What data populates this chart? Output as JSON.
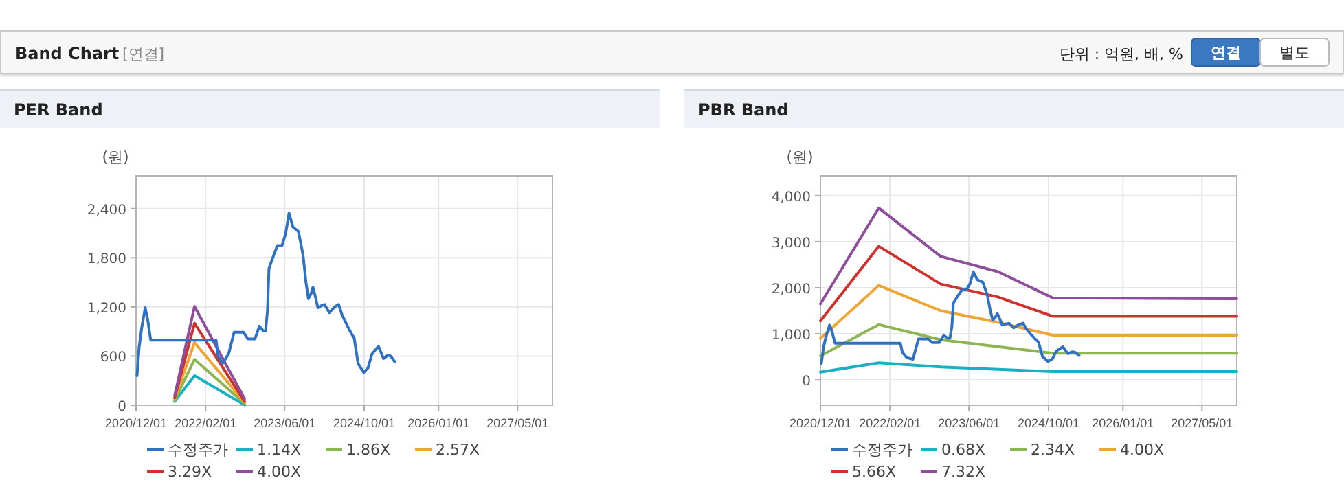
{
  "chart_data": [
    {
      "type": "other",
      "title": "Band Chart",
      "annotations": [
        "[연결]",
        "단위 : 억원, 배, %",
        "연결",
        "별도"
      ]
    },
    {
      "type": "line",
      "title": "PER Band",
      "ylabel": "(원)",
      "xlim": [
        "2020-12-01",
        "2027-12-01"
      ],
      "xticks": [
        {
          "value": "2020-12-01",
          "label": "2020/12/01"
        },
        {
          "value": "2022-02-01",
          "label": "2022/02/01"
        },
        {
          "value": "2023-06-01",
          "label": "2023/06/01"
        },
        {
          "value": "2024-10-01",
          "label": "2024/10/01"
        },
        {
          "value": "2026-01-01",
          "label": "2026/01/01"
        },
        {
          "value": "2027-05-01",
          "label": "2027/05/01"
        }
      ],
      "ylim": [
        0,
        2800
      ],
      "yticks": [
        {
          "value": 0,
          "label": "0"
        },
        {
          "value": 600,
          "label": "600"
        },
        {
          "value": 1200,
          "label": "1,200"
        },
        {
          "value": 1800,
          "label": "1,800"
        },
        {
          "value": 2400,
          "label": "2,400"
        }
      ],
      "grid": true,
      "legend": "bottom",
      "series": [
        {
          "name": "수정주가",
          "color": "#2f72c4",
          "x": [
            "2020-12-07",
            "2020-12-20",
            "2021-01-04",
            "2021-01-26",
            "2021-02-10",
            "2021-03-01",
            "2022-04-06",
            "2022-04-18",
            "2022-05-16",
            "2022-06-22",
            "2022-07-26",
            "2022-09-22",
            "2022-10-18",
            "2022-12-01",
            "2022-12-28",
            "2023-01-22",
            "2023-02-04",
            "2023-02-16",
            "2023-02-25",
            "2023-03-22",
            "2023-04-18",
            "2023-05-16",
            "2023-06-07",
            "2023-06-28",
            "2023-07-22",
            "2023-08-25",
            "2023-09-22",
            "2023-10-10",
            "2023-10-25",
            "2023-11-10",
            "2023-11-22",
            "2023-12-10",
            "2023-12-22",
            "2024-01-13",
            "2024-02-01",
            "2024-03-01",
            "2024-04-06",
            "2024-04-28",
            "2024-05-18",
            "2024-06-15",
            "2024-07-13",
            "2024-08-01",
            "2024-08-25",
            "2024-09-28",
            "2024-10-25",
            "2024-11-18",
            "2024-12-28",
            "2025-01-28",
            "2025-02-25",
            "2025-03-13",
            "2025-04-07"
          ],
          "values": [
            360,
            710,
            935,
            1190,
            1050,
            795,
            795,
            600,
            510,
            625,
            890,
            890,
            810,
            810,
            965,
            905,
            905,
            1160,
            1670,
            1810,
            1950,
            1950,
            2090,
            2345,
            2175,
            2120,
            1835,
            1500,
            1300,
            1360,
            1440,
            1300,
            1190,
            1215,
            1230,
            1130,
            1205,
            1230,
            1105,
            990,
            880,
            820,
            510,
            400,
            455,
            625,
            720,
            570,
            610,
            600,
            530
          ]
        },
        {
          "name": "1.14X",
          "color": "#17b1c1",
          "x": [
            "2021-07-26",
            "2021-11-25",
            "2022-09-28"
          ],
          "values": [
            45,
            360,
            5
          ]
        },
        {
          "name": "1.86X",
          "color": "#8db652",
          "x": [
            "2021-07-26",
            "2021-11-25",
            "2022-09-28"
          ],
          "values": [
            60,
            560,
            20
          ]
        },
        {
          "name": "2.57X",
          "color": "#f0a431",
          "x": [
            "2021-07-26",
            "2021-11-25",
            "2022-09-28"
          ],
          "values": [
            80,
            765,
            35
          ]
        },
        {
          "name": "3.29X",
          "color": "#d0312d",
          "x": [
            "2021-07-26",
            "2021-11-25",
            "2022-09-28"
          ],
          "values": [
            90,
            1000,
            45
          ]
        },
        {
          "name": "4.00X",
          "color": "#8e4e9b",
          "x": [
            "2021-07-26",
            "2021-11-25",
            "2022-09-28"
          ],
          "values": [
            118,
            1205,
            80
          ]
        }
      ]
    },
    {
      "type": "line",
      "title": "PBR Band",
      "ylabel": "(원)",
      "xlim": [
        "2020-12-01",
        "2027-12-01"
      ],
      "xticks": [
        {
          "value": "2020-12-01",
          "label": "2020/12/01"
        },
        {
          "value": "2022-02-01",
          "label": "2022/02/01"
        },
        {
          "value": "2023-06-01",
          "label": "2023/06/01"
        },
        {
          "value": "2024-10-01",
          "label": "2024/10/01"
        },
        {
          "value": "2026-01-01",
          "label": "2026/01/01"
        },
        {
          "value": "2027-05-01",
          "label": "2027/05/01"
        }
      ],
      "ylim": [
        -550,
        4430
      ],
      "yticks": [
        {
          "value": 0,
          "label": "0"
        },
        {
          "value": 1000,
          "label": "1,000"
        },
        {
          "value": 2000,
          "label": "2,000"
        },
        {
          "value": 3000,
          "label": "3,000"
        },
        {
          "value": 4000,
          "label": "4,000"
        }
      ],
      "grid": true,
      "legend": "bottom",
      "series": [
        {
          "name": "수정주가",
          "color": "#2f72c4",
          "x": [
            "2020-12-07",
            "2020-12-20",
            "2021-01-04",
            "2021-01-26",
            "2021-02-10",
            "2021-03-01",
            "2022-04-06",
            "2022-04-18",
            "2022-05-16",
            "2022-06-22",
            "2022-07-26",
            "2022-09-22",
            "2022-10-18",
            "2022-12-01",
            "2022-12-28",
            "2023-01-22",
            "2023-02-04",
            "2023-02-16",
            "2023-02-25",
            "2023-03-22",
            "2023-04-18",
            "2023-05-16",
            "2023-06-07",
            "2023-06-28",
            "2023-07-22",
            "2023-08-25",
            "2023-09-22",
            "2023-10-10",
            "2023-10-25",
            "2023-11-10",
            "2023-11-22",
            "2023-12-10",
            "2023-12-22",
            "2024-01-13",
            "2024-02-01",
            "2024-03-01",
            "2024-04-06",
            "2024-04-28",
            "2024-05-18",
            "2024-06-15",
            "2024-07-13",
            "2024-08-01",
            "2024-08-25",
            "2024-09-28",
            "2024-10-25",
            "2024-11-18",
            "2024-12-28",
            "2025-01-28",
            "2025-02-25",
            "2025-03-13",
            "2025-04-07"
          ],
          "values": [
            360,
            710,
            935,
            1190,
            1050,
            795,
            795,
            600,
            480,
            450,
            890,
            890,
            810,
            810,
            965,
            905,
            905,
            1160,
            1670,
            1810,
            1950,
            1950,
            2090,
            2345,
            2175,
            2120,
            1835,
            1500,
            1300,
            1360,
            1440,
            1300,
            1190,
            1215,
            1230,
            1130,
            1205,
            1230,
            1105,
            990,
            880,
            820,
            510,
            400,
            455,
            625,
            720,
            570,
            610,
            600,
            530
          ]
        },
        {
          "name": "0.68X",
          "color": "#17b1c1",
          "x": [
            "2020-12-01",
            "2021-11-24",
            "2022-12-10",
            "2023-11-25",
            "2024-10-28",
            "2027-12-01"
          ],
          "values": [
            170,
            370,
            280,
            230,
            180,
            180
          ]
        },
        {
          "name": "2.34X",
          "color": "#8db652",
          "x": [
            "2020-12-01",
            "2021-11-24",
            "2022-12-10",
            "2023-11-25",
            "2024-10-28",
            "2027-12-01"
          ],
          "values": [
            520,
            1200,
            870,
            720,
            580,
            580
          ]
        },
        {
          "name": "4.00X",
          "color": "#f0a431",
          "x": [
            "2020-12-01",
            "2021-11-24",
            "2022-12-10",
            "2023-11-25",
            "2024-10-28",
            "2027-12-01"
          ],
          "values": [
            900,
            2050,
            1500,
            1250,
            970,
            970
          ]
        },
        {
          "name": "5.66X",
          "color": "#d0312d",
          "x": [
            "2020-12-01",
            "2021-11-24",
            "2022-12-10",
            "2023-11-25",
            "2024-10-28",
            "2027-12-01"
          ],
          "values": [
            1280,
            2900,
            2080,
            1800,
            1380,
            1380
          ]
        },
        {
          "name": "7.32X",
          "color": "#8e4e9b",
          "x": [
            "2020-12-01",
            "2021-11-24",
            "2022-12-10",
            "2023-11-25",
            "2024-10-28",
            "2027-12-01"
          ],
          "values": [
            1650,
            3730,
            2680,
            2350,
            1780,
            1760
          ]
        }
      ]
    }
  ]
}
